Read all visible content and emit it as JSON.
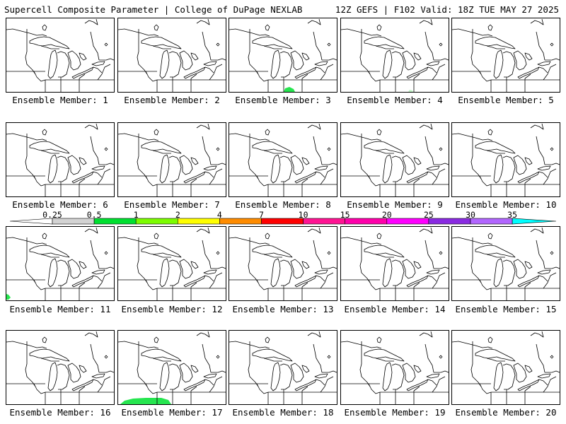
{
  "header": {
    "left": "Supercell Composite Parameter | College of DuPage NEXLAB",
    "right": "12Z GEFS | F102 Valid: 18Z TUE MAY 27 2025"
  },
  "legend": {
    "labels": [
      "0.25",
      "0.5",
      "1",
      "2",
      "4",
      "7",
      "10",
      "15",
      "20",
      "25",
      "30",
      "35"
    ],
    "colors": [
      "#d3d3d3",
      "#00e030",
      "#7cfc00",
      "#ffff00",
      "#ff8c00",
      "#ff0000",
      "#ff1493",
      "#ff00aa",
      "#ff00ff",
      "#8a2be2",
      "#b266ff",
      "#00ffff"
    ]
  },
  "members": [
    {
      "label": "Ensemble Member: 1"
    },
    {
      "label": "Ensemble Member: 2"
    },
    {
      "label": "Ensemble Member: 3",
      "blob": "bottom-center"
    },
    {
      "label": "Ensemble Member: 4",
      "blob": "bottom-center-faint"
    },
    {
      "label": "Ensemble Member: 5"
    },
    {
      "label": "Ensemble Member: 6"
    },
    {
      "label": "Ensemble Member: 7"
    },
    {
      "label": "Ensemble Member: 8"
    },
    {
      "label": "Ensemble Member: 9"
    },
    {
      "label": "Ensemble Member: 10"
    },
    {
      "label": "Ensemble Member: 11",
      "blob": "bottom-left"
    },
    {
      "label": "Ensemble Member: 12"
    },
    {
      "label": "Ensemble Member: 13"
    },
    {
      "label": "Ensemble Member: 14"
    },
    {
      "label": "Ensemble Member: 15"
    },
    {
      "label": "Ensemble Member: 16"
    },
    {
      "label": "Ensemble Member: 17",
      "blob": "bottom-wide"
    },
    {
      "label": "Ensemble Member: 18"
    },
    {
      "label": "Ensemble Member: 19"
    },
    {
      "label": "Ensemble Member: 20"
    }
  ]
}
